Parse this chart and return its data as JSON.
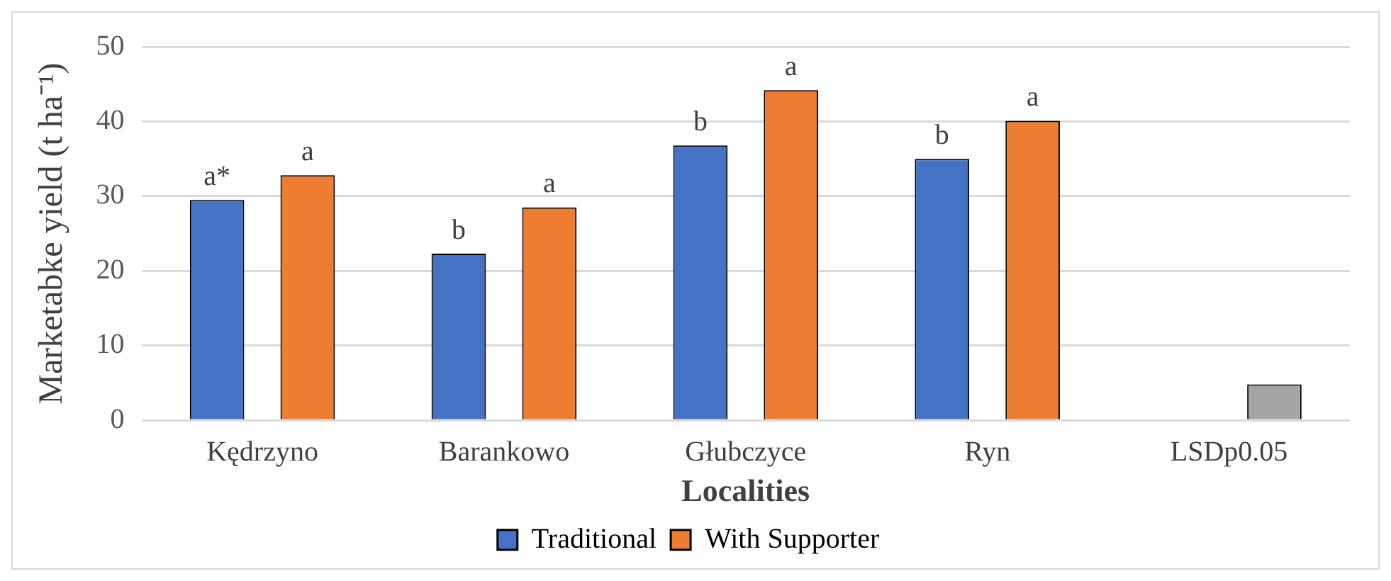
{
  "chart_data": {
    "type": "bar",
    "xlabel": "Localities",
    "ylabel": "Marketabke yield (t ha⁻¹)",
    "categories": [
      "Kędrzyno",
      "Barankowo",
      "Głubczyce",
      "Ryn",
      "LSDp0.05"
    ],
    "series": [
      {
        "name": "Traditional",
        "color": "#4472c4",
        "values": [
          29.5,
          22.3,
          36.8,
          35.0,
          null
        ],
        "value_labels": [
          "a*",
          "b",
          "b",
          "b",
          null
        ]
      },
      {
        "name": "With Supporter",
        "color": "#ed7d31",
        "colors": [
          "#ed7d31",
          "#ed7d31",
          "#ed7d31",
          "#ed7d31",
          "#a5a5a5"
        ],
        "values": [
          32.8,
          28.5,
          44.2,
          40.1,
          4.8
        ],
        "value_labels": [
          "a",
          "a",
          "a",
          "a",
          null
        ]
      }
    ],
    "ylim": [
      0,
      50
    ],
    "yticks": [
      0,
      10,
      20,
      30,
      40,
      50
    ],
    "grid": "y",
    "legend": "bottom"
  }
}
